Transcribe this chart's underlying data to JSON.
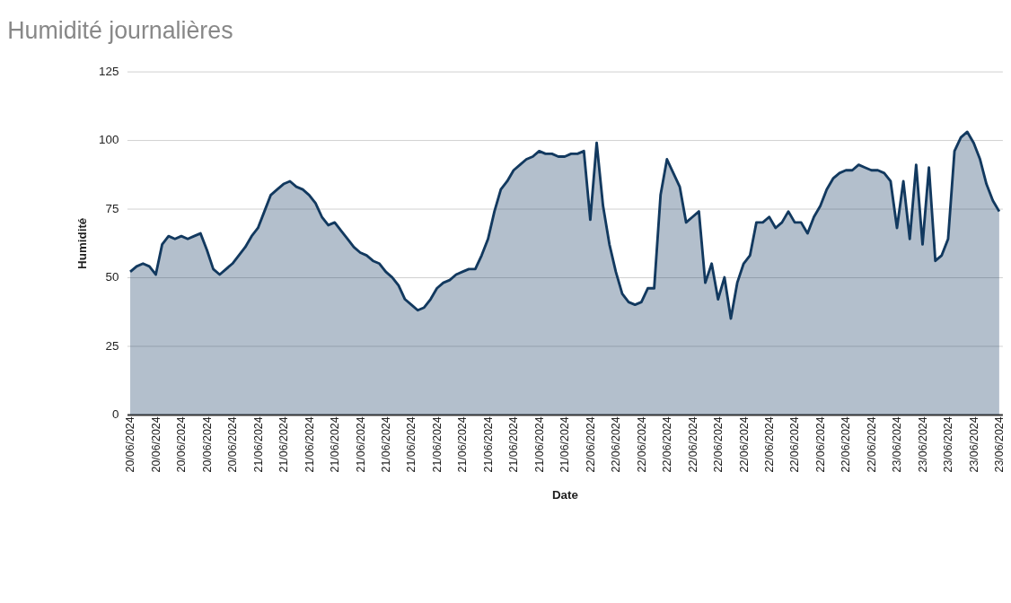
{
  "chart_data": {
    "type": "area",
    "title": "Humidité journalières",
    "xlabel": "Date",
    "ylabel": "Humidité",
    "categories": [
      "20/06/2024",
      null,
      null,
      null,
      "20/06/2024",
      null,
      null,
      null,
      "20/06/2024",
      null,
      null,
      null,
      "20/06/2024",
      null,
      null,
      null,
      "20/06/2024",
      null,
      null,
      null,
      "21/06/2024",
      null,
      null,
      null,
      "21/06/2024",
      null,
      null,
      null,
      "21/06/2024",
      null,
      null,
      null,
      "21/06/2024",
      null,
      null,
      null,
      "21/06/2024",
      null,
      null,
      null,
      "21/06/2024",
      null,
      null,
      null,
      "21/06/2024",
      null,
      null,
      null,
      "21/06/2024",
      null,
      null,
      null,
      "21/06/2024",
      null,
      null,
      null,
      "21/06/2024",
      null,
      null,
      null,
      "21/06/2024",
      null,
      null,
      null,
      "21/06/2024",
      null,
      null,
      null,
      "21/06/2024",
      null,
      null,
      null,
      "22/06/2024",
      null,
      null,
      null,
      "22/06/2024",
      null,
      null,
      null,
      "22/06/2024",
      null,
      null,
      null,
      "22/06/2024",
      null,
      null,
      null,
      "22/06/2024",
      null,
      null,
      null,
      "22/06/2024",
      null,
      null,
      null,
      "22/06/2024",
      null,
      null,
      null,
      "22/06/2024",
      null,
      null,
      null,
      "22/06/2024",
      null,
      null,
      null,
      "22/06/2024",
      null,
      null,
      null,
      "22/06/2024",
      null,
      null,
      null,
      "22/06/2024",
      null,
      null,
      null,
      "23/06/2024",
      null,
      null,
      null,
      "23/06/2024",
      null,
      null,
      null,
      "23/06/2024",
      null,
      null,
      null,
      "23/06/2024",
      null,
      null,
      null,
      "23/06/2024"
    ],
    "series": [
      {
        "color": "#12395f",
        "values": [
          52,
          54,
          55,
          54,
          51,
          62,
          65,
          64,
          65,
          64,
          65,
          66,
          60,
          53,
          51,
          53,
          55,
          58,
          61,
          65,
          68,
          74,
          80,
          82,
          84,
          85,
          83,
          82,
          80,
          77,
          72,
          69,
          70,
          67,
          64,
          61,
          59,
          58,
          56,
          55,
          52,
          50,
          47,
          42,
          40,
          38,
          39,
          42,
          46,
          48,
          49,
          51,
          52,
          53,
          53,
          58,
          64,
          74,
          82,
          85,
          89,
          91,
          93,
          94,
          96,
          95,
          95,
          94,
          94,
          95,
          95,
          96,
          71,
          99,
          76,
          62,
          52,
          44,
          41,
          40,
          41,
          46,
          46,
          80,
          93,
          88,
          83,
          70,
          72,
          74,
          48,
          55,
          42,
          50,
          35,
          48,
          55,
          58,
          70,
          70,
          72,
          68,
          70,
          74,
          70,
          70,
          66,
          72,
          76,
          82,
          86,
          88,
          89,
          89,
          91,
          90,
          89,
          89,
          88,
          85,
          68,
          85,
          64,
          91,
          62,
          90,
          56,
          58,
          64,
          96,
          101,
          103,
          99,
          93,
          84,
          78,
          74
        ]
      }
    ],
    "ylim": [
      0,
      125
    ],
    "yticks": [
      0,
      25,
      50,
      75,
      100,
      125
    ],
    "grid": "y"
  }
}
